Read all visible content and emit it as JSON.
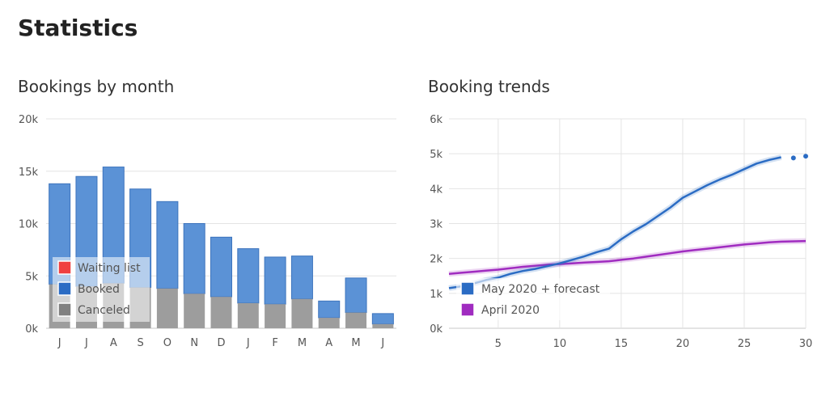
{
  "page": {
    "title": "Statistics"
  },
  "chart_data": [
    {
      "type": "bar",
      "title": "Bookings by month",
      "stacked": true,
      "categories": [
        "J",
        "J",
        "A",
        "S",
        "O",
        "N",
        "D",
        "J",
        "F",
        "M",
        "A",
        "M",
        "J"
      ],
      "ylim": [
        0,
        20000
      ],
      "yticks": [
        0,
        5000,
        10000,
        15000,
        20000
      ],
      "ytick_labels": [
        "0k",
        "5k",
        "10k",
        "15k",
        "20k"
      ],
      "grid": true,
      "legend_position": "bottom-left",
      "series": [
        {
          "name": "Canceled",
          "color": "#808080",
          "values": [
            4200,
            4000,
            4300,
            3900,
            3800,
            3300,
            3000,
            2400,
            2300,
            2800,
            1000,
            1500,
            400
          ]
        },
        {
          "name": "Booked",
          "color": "#2b6cc4",
          "values": [
            9600,
            10500,
            11100,
            9400,
            8300,
            6700,
            5700,
            5200,
            4500,
            4100,
            1600,
            3300,
            1000
          ]
        },
        {
          "name": "Waiting list",
          "color": "#f04040",
          "values": [
            0,
            0,
            0,
            0,
            0,
            0,
            0,
            0,
            0,
            0,
            0,
            0,
            0
          ]
        }
      ]
    },
    {
      "type": "line",
      "title": "Booking trends",
      "xlim": [
        1,
        30
      ],
      "ylim": [
        0,
        6000
      ],
      "xticks": [
        5,
        10,
        15,
        20,
        25,
        30
      ],
      "yticks": [
        0,
        1000,
        2000,
        3000,
        4000,
        5000,
        6000
      ],
      "ytick_labels": [
        "0k",
        "1k",
        "2k",
        "3k",
        "4k",
        "5k",
        "6k"
      ],
      "grid": true,
      "legend_position": "bottom-left",
      "series": [
        {
          "name": "May 2020 + forecast",
          "color": "#2b6cc4",
          "x": [
            1,
            2,
            3,
            4,
            5,
            6,
            7,
            8,
            9,
            10,
            11,
            12,
            13,
            14,
            15,
            16,
            17,
            18,
            19,
            20,
            21,
            22,
            23,
            24,
            25,
            26,
            27,
            28
          ],
          "y": [
            1150,
            1200,
            1280,
            1380,
            1450,
            1560,
            1640,
            1700,
            1780,
            1860,
            1960,
            2060,
            2180,
            2280,
            2550,
            2780,
            2980,
            3220,
            3460,
            3740,
            3920,
            4100,
            4260,
            4400,
            4560,
            4720,
            4820,
            4900
          ],
          "forecast_x": [
            29,
            30
          ],
          "forecast_y": [
            4880,
            4930
          ]
        },
        {
          "name": "April 2020",
          "color": "#a02cc0",
          "x": [
            1,
            2,
            3,
            4,
            5,
            6,
            7,
            8,
            9,
            10,
            11,
            12,
            13,
            14,
            15,
            16,
            17,
            18,
            19,
            20,
            21,
            22,
            23,
            24,
            25,
            26,
            27,
            28,
            29,
            30
          ],
          "y": [
            1560,
            1590,
            1620,
            1650,
            1680,
            1720,
            1760,
            1790,
            1820,
            1840,
            1860,
            1880,
            1900,
            1920,
            1960,
            2000,
            2050,
            2100,
            2150,
            2200,
            2240,
            2280,
            2320,
            2360,
            2400,
            2430,
            2460,
            2480,
            2490,
            2500
          ]
        }
      ]
    }
  ]
}
